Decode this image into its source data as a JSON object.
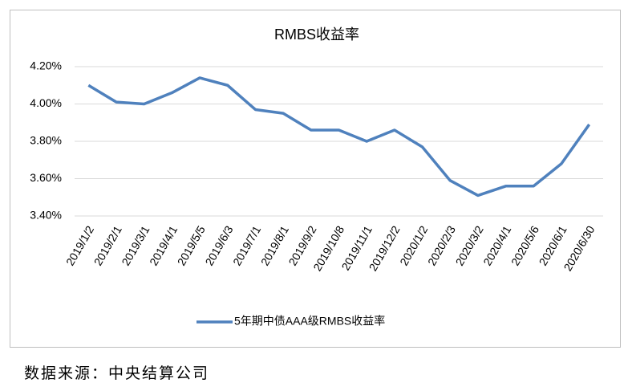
{
  "chart_data": {
    "type": "line",
    "title": "RMBS收益率",
    "categories": [
      "2019/1/2",
      "2019/2/1",
      "2019/3/1",
      "2019/4/1",
      "2019/5/5",
      "2019/6/3",
      "2019/7/1",
      "2019/8/1",
      "2019/9/2",
      "2019/10/8",
      "2019/11/1",
      "2019/12/2",
      "2020/1/2",
      "2020/2/3",
      "2020/3/2",
      "2020/4/1",
      "2020/5/6",
      "2020/6/1",
      "2020/6/30"
    ],
    "series": [
      {
        "name": "5年期中债AAA级RMBS收益率",
        "color": "#4f81bd",
        "values": [
          4.1,
          4.01,
          4.0,
          4.06,
          4.14,
          4.1,
          3.97,
          3.95,
          3.86,
          3.86,
          3.8,
          3.86,
          3.77,
          3.59,
          3.51,
          3.56,
          3.56,
          3.68,
          3.89
        ]
      }
    ],
    "ylim": [
      3.4,
      4.2
    ],
    "yticks": [
      {
        "value": 3.4,
        "label": "3.40%"
      },
      {
        "value": 3.6,
        "label": "3.60%"
      },
      {
        "value": 3.8,
        "label": "3.80%"
      },
      {
        "value": 4.0,
        "label": "4.00%"
      },
      {
        "value": 4.2,
        "label": "4.20%"
      }
    ],
    "grid": true,
    "legend": "bottom",
    "source": "数据来源：中央结算公司"
  }
}
